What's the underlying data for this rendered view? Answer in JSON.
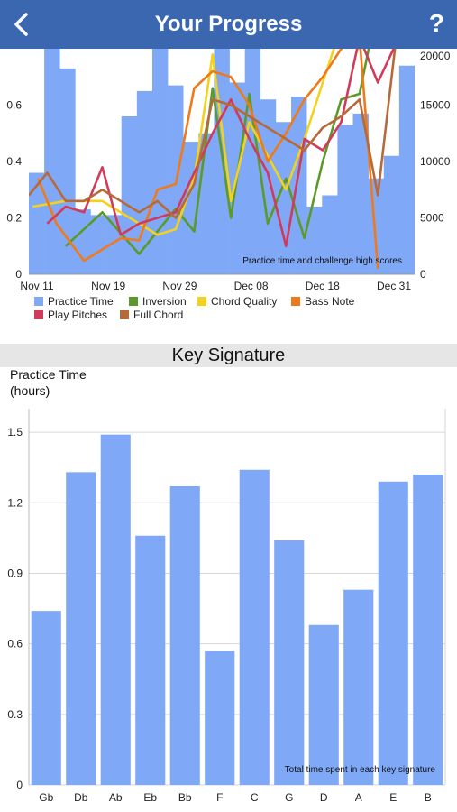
{
  "header": {
    "title": "Your Progress",
    "back_icon": "chevron-left-icon",
    "help_label": "?"
  },
  "colors": {
    "header_bg": "#3b67b1",
    "practice": "#7fa8f7",
    "inversion": "#5b9a2a",
    "chord_quality": "#f2d21c",
    "bass_note": "#f07a1a",
    "play_pitches": "#d13a5a",
    "full_chord": "#b66a3a"
  },
  "chart_data": [
    {
      "type": "bar+line",
      "annotation": "Practice time and challenge high scores",
      "x_ticks": [
        "Nov 11",
        "Nov 19",
        "Nov 29",
        "Dec 08",
        "Dec 18",
        "Dec 31"
      ],
      "y_left_ticks": [
        "0",
        "0.2",
        "0.4",
        "0.6"
      ],
      "y_right_ticks": [
        "0",
        "5000",
        "10000",
        "15000",
        "20000"
      ],
      "ylim_left": [
        0,
        0.8
      ],
      "ylim_right": [
        0,
        20000
      ],
      "xlim": [
        0,
        21
      ],
      "practice_time": [
        0.36,
        0.82,
        0.73,
        0.23,
        0.21,
        0.21,
        0.56,
        0.65,
        0.82,
        0.67,
        0.47,
        0.5,
        0.82,
        0.68,
        0.82,
        0.62,
        0.54,
        0.63,
        0.24,
        0.28,
        0.53,
        0.57,
        0.34,
        0.42,
        0.74
      ],
      "series": [
        {
          "name": "Inversion",
          "color": "#5b9a2a",
          "x": [
            2,
            4,
            6,
            8,
            9,
            10,
            11,
            12,
            13,
            14,
            15,
            16,
            17,
            18,
            19,
            20
          ],
          "y": [
            2500,
            5500,
            1800,
            5800,
            3800,
            16500,
            5000,
            16000,
            4500,
            8500,
            3200,
            10000,
            15500,
            16000,
            24000,
            22000
          ]
        },
        {
          "name": "Chord Quality",
          "color": "#f2d21c",
          "x": [
            0.2,
            2,
            4,
            6,
            7,
            8,
            9,
            10,
            11,
            12,
            13,
            14,
            15,
            16,
            17,
            18,
            19,
            20
          ],
          "y": [
            6000,
            6500,
            6500,
            4500,
            3500,
            4000,
            8500,
            19500,
            6500,
            13500,
            10500,
            7500,
            12000,
            17000,
            22000,
            20000,
            24000,
            22000
          ]
        },
        {
          "name": "Bass Note",
          "color": "#f07a1a",
          "x": [
            0.5,
            1.5,
            3,
            5,
            6,
            7,
            8,
            9,
            10,
            11,
            12,
            13,
            14,
            15,
            16,
            17,
            18,
            19
          ],
          "y": [
            8500,
            4500,
            1200,
            3200,
            3000,
            7500,
            8000,
            16500,
            18000,
            17500,
            15000,
            10000,
            12500,
            15500,
            17500,
            20000,
            21000,
            500
          ]
        },
        {
          "name": "Play Pitches",
          "color": "#d13a5a",
          "x": [
            1,
            2,
            3,
            4,
            5,
            6,
            7,
            8,
            9,
            10,
            11,
            12,
            13,
            14,
            15,
            16,
            17,
            18,
            19,
            20
          ],
          "y": [
            4500,
            6000,
            5500,
            9500,
            3500,
            4500,
            5000,
            5500,
            9000,
            12500,
            15500,
            12000,
            9000,
            2500,
            12000,
            11000,
            13500,
            21000,
            17000,
            20500
          ]
        },
        {
          "name": "Full Chord",
          "color": "#b66a3a",
          "x": [
            0,
            1,
            2,
            3,
            4,
            5,
            6,
            7,
            8,
            9,
            10,
            11,
            12,
            13,
            14,
            15,
            16,
            17,
            18,
            19,
            20
          ],
          "y": [
            7000,
            9000,
            6500,
            6500,
            7500,
            6500,
            5500,
            6500,
            5000,
            8000,
            15500,
            15000,
            14000,
            13000,
            12000,
            11000,
            13000,
            14000,
            15500,
            7000,
            21000
          ]
        }
      ],
      "legend": [
        {
          "label": "Practice Time",
          "color": "#7fa8f7"
        },
        {
          "label": "Inversion",
          "color": "#5b9a2a"
        },
        {
          "label": "Chord Quality",
          "color": "#f2d21c"
        },
        {
          "label": "Bass Note",
          "color": "#f07a1a"
        },
        {
          "label": "Play Pitches",
          "color": "#d13a5a"
        },
        {
          "label": "Full Chord",
          "color": "#b66a3a"
        }
      ]
    },
    {
      "type": "bar",
      "section_title": "Key Signature",
      "ylabel": "Practice Time\n(hours)",
      "annotation": "Total time spent in each key signature",
      "categories": [
        "Gb",
        "Db",
        "Ab",
        "Eb",
        "Bb",
        "F",
        "C",
        "G",
        "D",
        "A",
        "E",
        "B"
      ],
      "values": [
        0.74,
        1.33,
        1.49,
        1.06,
        1.27,
        0.57,
        1.34,
        1.04,
        0.68,
        0.83,
        1.29,
        1.32
      ],
      "y_ticks": [
        "0",
        "0.3",
        "0.6",
        "0.9",
        "1.2",
        "1.5"
      ],
      "ylim": [
        0,
        1.6
      ],
      "grid": true
    }
  ]
}
